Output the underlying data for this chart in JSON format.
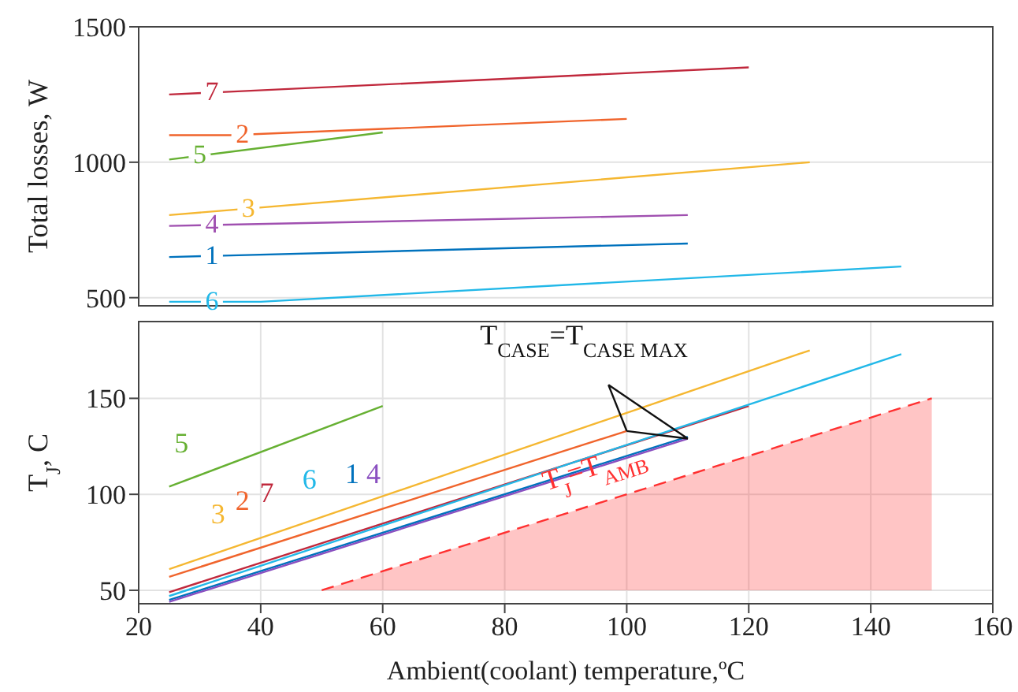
{
  "chart_data": [
    {
      "type": "line",
      "ylabel": "Total losses, W",
      "xlim": [
        20,
        160
      ],
      "xticks": [
        20,
        40,
        60,
        80,
        100,
        120,
        140,
        160
      ],
      "ylim": [
        470,
        1500
      ],
      "yticks": [
        500,
        1000,
        1500
      ],
      "grid": true,
      "legend": false,
      "tick_labels": "y",
      "line_style": "solid",
      "marker": "none",
      "series": [
        {
          "name": "7",
          "color": "#c0283c",
          "x": [
            25,
            120
          ],
          "values": [
            1250,
            1350
          ]
        },
        {
          "name": "2",
          "color": "#f0642c",
          "x": [
            25,
            35,
            100
          ],
          "values": [
            1100,
            1100,
            1160
          ]
        },
        {
          "name": "5",
          "color": "#66b032",
          "x": [
            25,
            60
          ],
          "values": [
            1010,
            1110
          ]
        },
        {
          "name": "3",
          "color": "#f5b731",
          "x": [
            25,
            130
          ],
          "values": [
            805,
            1000
          ]
        },
        {
          "name": "4",
          "color": "#a050b0",
          "x": [
            25,
            110
          ],
          "values": [
            765,
            805
          ]
        },
        {
          "name": "1",
          "color": "#0072bd",
          "x": [
            25,
            110
          ],
          "values": [
            650,
            700
          ]
        },
        {
          "name": "6",
          "color": "#22b8e8",
          "x": [
            25,
            40,
            145
          ],
          "values": [
            485,
            485,
            615
          ]
        }
      ]
    },
    {
      "type": "line",
      "xlabel": "Ambient(coolant) temperature,ºC",
      "ylabel": "T$_{J}$, C",
      "xlim": [
        20,
        160
      ],
      "xticks": [
        20,
        40,
        60,
        80,
        100,
        120,
        140,
        160
      ],
      "ylim": [
        43,
        190
      ],
      "yticks": [
        50,
        100,
        150
      ],
      "grid": true,
      "legend": false,
      "line_style": "solid",
      "marker": "none",
      "annotations": [
        {
          "text": "T$_{CASE}$=T$_{CASE MAX}$",
          "x": 100,
          "y": 133
        },
        {
          "text": "T$_{J}$=T$_{AMB}$",
          "x": 95,
          "y": 110
        }
      ],
      "series": [
        {
          "name": "5",
          "color": "#66b032",
          "x": [
            25,
            60
          ],
          "values": [
            104,
            146
          ]
        },
        {
          "name": "3",
          "color": "#f5b731",
          "x": [
            25,
            130
          ],
          "values": [
            61,
            175
          ]
        },
        {
          "name": "2",
          "color": "#f0642c",
          "x": [
            25,
            100
          ],
          "values": [
            57,
            133
          ]
        },
        {
          "name": "7",
          "color": "#c0283c",
          "x": [
            25,
            120
          ],
          "values": [
            49,
            146
          ]
        },
        {
          "name": "6",
          "color": "#22b8e8",
          "x": [
            25,
            145
          ],
          "values": [
            47,
            173
          ]
        },
        {
          "name": "1",
          "color": "#0072bd",
          "x": [
            25,
            110
          ],
          "values": [
            45,
            130
          ]
        },
        {
          "name": "4",
          "color": "#8a4fc0",
          "x": [
            25,
            110
          ],
          "values": [
            44,
            129
          ]
        },
        {
          "color": "#ff3030",
          "line_style": "dashed",
          "x": [
            50,
            150
          ],
          "values": [
            50,
            150
          ],
          "lower": [
            50,
            50
          ],
          "upper": [
            50,
            150
          ]
        }
      ]
    }
  ]
}
